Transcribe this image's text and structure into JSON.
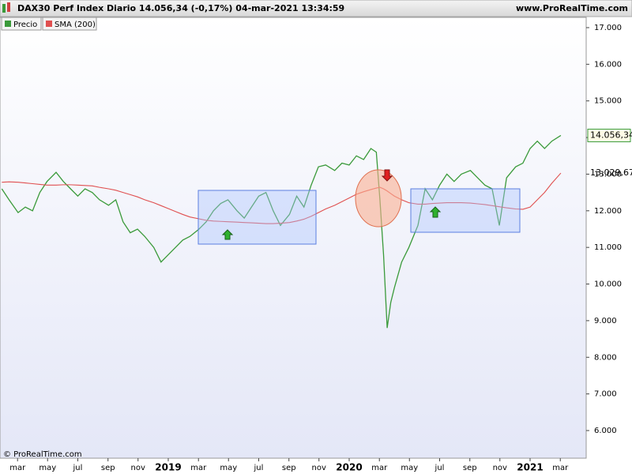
{
  "header": {
    "title": "DAX30 Perf Index Diario 14.056,34 (-0,17%) 04-mar-2021 13:34:59",
    "site": "www.ProRealTime.com"
  },
  "chart_data": {
    "type": "line",
    "copyright": "© ProRealTime.com",
    "x": [
      2018.08,
      2018.12,
      2018.17,
      2018.21,
      2018.25,
      2018.29,
      2018.33,
      2018.38,
      2018.42,
      2018.46,
      2018.5,
      2018.54,
      2018.58,
      2018.62,
      2018.67,
      2018.71,
      2018.75,
      2018.79,
      2018.83,
      2018.87,
      2018.92,
      2018.96,
      2019.0,
      2019.04,
      2019.08,
      2019.12,
      2019.17,
      2019.21,
      2019.25,
      2019.29,
      2019.33,
      2019.38,
      2019.42,
      2019.46,
      2019.5,
      2019.54,
      2019.58,
      2019.62,
      2019.67,
      2019.71,
      2019.75,
      2019.79,
      2019.83,
      2019.87,
      2019.92,
      2019.96,
      2020.0,
      2020.04,
      2020.08,
      2020.12,
      2020.15,
      2020.17,
      2020.19,
      2020.21,
      2020.23,
      2020.25,
      2020.29,
      2020.33,
      2020.38,
      2020.42,
      2020.46,
      2020.5,
      2020.54,
      2020.58,
      2020.62,
      2020.67,
      2020.71,
      2020.75,
      2020.79,
      2020.83,
      2020.87,
      2020.92,
      2020.96,
      2021.0,
      2021.04,
      2021.08,
      2021.12,
      2021.17
    ],
    "series": [
      {
        "name": "Precio",
        "color": "#3a9a3a",
        "last_label": "14.056,34",
        "values": [
          12600,
          12300,
          11950,
          12100,
          12000,
          12500,
          12800,
          13050,
          12800,
          12600,
          12400,
          12600,
          12500,
          12300,
          12150,
          12300,
          11700,
          11400,
          11500,
          11300,
          11000,
          10600,
          10800,
          11000,
          11200,
          11300,
          11500,
          11700,
          12000,
          12200,
          12300,
          12000,
          11800,
          12100,
          12400,
          12500,
          12000,
          11600,
          11900,
          12400,
          12100,
          12700,
          13200,
          13250,
          13100,
          13300,
          13250,
          13500,
          13400,
          13700,
          13600,
          12300,
          10800,
          8800,
          9500,
          9900,
          10600,
          11000,
          11600,
          12600,
          12300,
          12700,
          13000,
          12800,
          13000,
          13100,
          12900,
          12700,
          12600,
          11600,
          12900,
          13200,
          13300,
          13700,
          13900,
          13700,
          13900,
          14056.34
        ]
      },
      {
        "name": "SMA (200)",
        "color": "#e05050",
        "last_label": "13.029,67",
        "values": [
          12780,
          12790,
          12780,
          12760,
          12740,
          12720,
          12700,
          12700,
          12710,
          12710,
          12700,
          12690,
          12680,
          12640,
          12600,
          12560,
          12500,
          12440,
          12380,
          12300,
          12220,
          12140,
          12060,
          11980,
          11900,
          11830,
          11780,
          11740,
          11720,
          11710,
          11700,
          11690,
          11680,
          11670,
          11660,
          11650,
          11650,
          11660,
          11680,
          11720,
          11770,
          11850,
          11950,
          12050,
          12150,
          12250,
          12350,
          12450,
          12520,
          12580,
          12620,
          12640,
          12600,
          12540,
          12470,
          12400,
          12300,
          12220,
          12180,
          12180,
          12200,
          12210,
          12220,
          12220,
          12220,
          12210,
          12190,
          12170,
          12140,
          12110,
          12080,
          12050,
          12040,
          12100,
          12300,
          12500,
          12750,
          13029.67
        ]
      }
    ],
    "xlim": [
      2018.07,
      2021.31
    ],
    "xticks": [
      {
        "value": 2018.167,
        "label": "mar"
      },
      {
        "value": 2018.333,
        "label": "may"
      },
      {
        "value": 2018.5,
        "label": "jul"
      },
      {
        "value": 2018.667,
        "label": "sep"
      },
      {
        "value": 2018.833,
        "label": "nov"
      },
      2019,
      {
        "value": 2019.167,
        "label": "mar"
      },
      {
        "value": 2019.333,
        "label": "may"
      },
      {
        "value": 2019.5,
        "label": "jul"
      },
      {
        "value": 2019.667,
        "label": "sep"
      },
      {
        "value": 2019.833,
        "label": "nov"
      },
      2020,
      {
        "value": 2020.167,
        "label": "mar"
      },
      {
        "value": 2020.333,
        "label": "may"
      },
      {
        "value": 2020.5,
        "label": "jul"
      },
      {
        "value": 2020.667,
        "label": "sep"
      },
      {
        "value": 2020.833,
        "label": "nov"
      },
      2021,
      {
        "value": 2021.167,
        "label": "mar"
      }
    ],
    "ylim": [
      5245,
      17280
    ],
    "yticks": [
      {
        "value": 6000,
        "label": "6.000"
      },
      {
        "value": 7000,
        "label": "7.000"
      },
      {
        "value": 8000,
        "label": "8.000"
      },
      {
        "value": 9000,
        "label": "9.000"
      },
      {
        "value": 10000,
        "label": "10.000"
      },
      {
        "value": 11000,
        "label": "11.000"
      },
      {
        "value": 12000,
        "label": "12.000"
      },
      {
        "value": 13000,
        "label": "13.000"
      },
      {
        "value": 14000,
        "label": "14.000"
      },
      {
        "value": 15000,
        "label": "15.000"
      },
      {
        "value": 16000,
        "label": "16.000"
      },
      {
        "value": 17000,
        "label": "17.000"
      }
    ]
  }
}
